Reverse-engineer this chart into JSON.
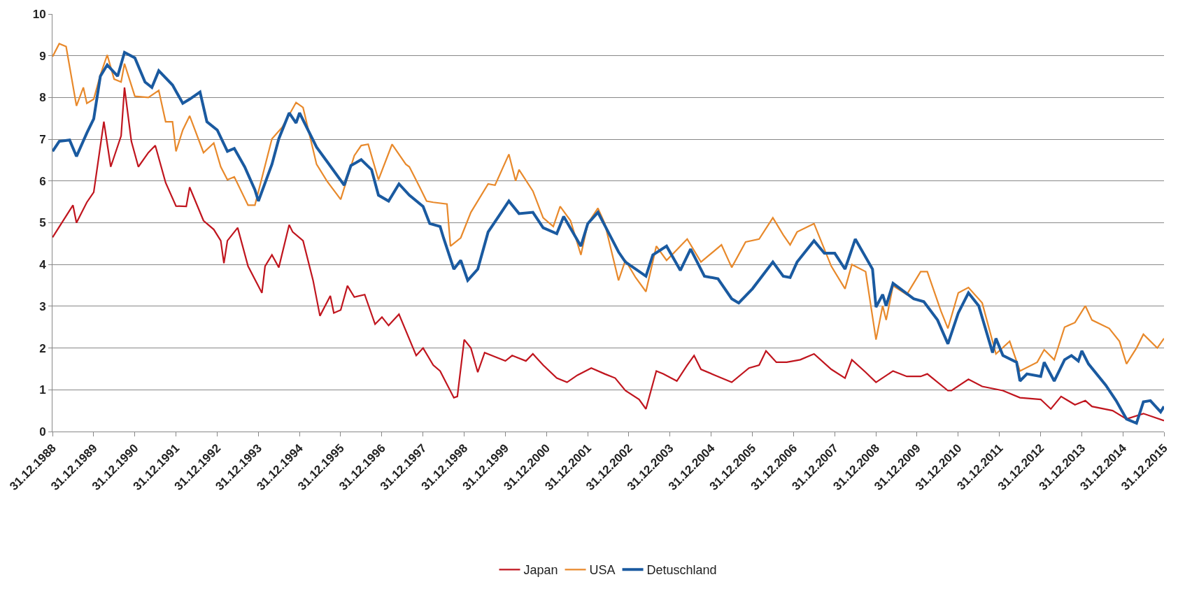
{
  "chart_data": {
    "type": "line",
    "xlim": [
      "1988-12-31",
      "2015-12-31"
    ],
    "xticks": [
      {
        "value": "1988-12-31",
        "label": "31.12.1988"
      },
      {
        "value": "1989-12-31",
        "label": "31.12.1989"
      },
      {
        "value": "1990-12-31",
        "label": "31.12.1990"
      },
      {
        "value": "1991-12-31",
        "label": "31.12.1991"
      },
      {
        "value": "1992-12-31",
        "label": "31.12.1992"
      },
      {
        "value": "1993-12-31",
        "label": "31.12.1993"
      },
      {
        "value": "1994-12-31",
        "label": "31.12.1994"
      },
      {
        "value": "1995-12-31",
        "label": "31.12.1995"
      },
      {
        "value": "1996-12-31",
        "label": "31.12.1996"
      },
      {
        "value": "1997-12-31",
        "label": "31.12.1997"
      },
      {
        "value": "1998-12-31",
        "label": "31.12.1998"
      },
      {
        "value": "1999-12-31",
        "label": "31.12.1999"
      },
      {
        "value": "2000-12-31",
        "label": "31.12.2000"
      },
      {
        "value": "2001-12-31",
        "label": "31.12.2001"
      },
      {
        "value": "2002-12-31",
        "label": "31.12.2002"
      },
      {
        "value": "2003-12-31",
        "label": "31.12.2003"
      },
      {
        "value": "2004-12-31",
        "label": "31.12.2004"
      },
      {
        "value": "2005-12-31",
        "label": "31.12.2005"
      },
      {
        "value": "2006-12-31",
        "label": "31.12.2006"
      },
      {
        "value": "2007-12-31",
        "label": "31.12.2007"
      },
      {
        "value": "2008-12-31",
        "label": "31.12.2008"
      },
      {
        "value": "2009-12-31",
        "label": "31.12.2009"
      },
      {
        "value": "2010-12-31",
        "label": "31.12.2010"
      },
      {
        "value": "2011-12-31",
        "label": "31.12.2011"
      },
      {
        "value": "2012-12-31",
        "label": "31.12.2012"
      },
      {
        "value": "2013-12-31",
        "label": "31.12.2013"
      },
      {
        "value": "2014-12-31",
        "label": "31.12.2014"
      },
      {
        "value": "2015-12-31",
        "label": "31.12.2015"
      }
    ],
    "ylim": [
      0,
      10
    ],
    "yticks": [
      0,
      1,
      2,
      3,
      4,
      5,
      6,
      7,
      8,
      9,
      10
    ],
    "grid": "y",
    "legend": "bottom",
    "marker": "none",
    "line_style": "solid",
    "series": [
      {
        "name": "Japan",
        "color": "#c0151e",
        "x": [
          "1989-01",
          "1989-07",
          "1989-08",
          "1989-11",
          "1990-01",
          "1990-04",
          "1990-06",
          "1990-09",
          "1990-10",
          "1990-12",
          "1991-02",
          "1991-05",
          "1991-07",
          "1991-10",
          "1992-01",
          "1992-04",
          "1992-05",
          "1992-09",
          "1992-12",
          "1993-02",
          "1993-03",
          "1993-04",
          "1993-07",
          "1993-10",
          "1994-02",
          "1994-03",
          "1994-05",
          "1994-07",
          "1994-10",
          "1994-11",
          "1995-02",
          "1995-05",
          "1995-07",
          "1995-10",
          "1995-11",
          "1996-01",
          "1996-03",
          "1996-05",
          "1996-08",
          "1996-11",
          "1997-01",
          "1997-03",
          "1997-06",
          "1997-11",
          "1998-01",
          "1998-04",
          "1998-06",
          "1998-10",
          "1998-11",
          "1999-01",
          "1999-03",
          "1999-05",
          "1999-07",
          "2000-01",
          "2000-03",
          "2000-07",
          "2000-09",
          "2000-12",
          "2001-04",
          "2001-07",
          "2001-10",
          "2002-02",
          "2002-06",
          "2002-09",
          "2002-12",
          "2003-04",
          "2003-06",
          "2003-09",
          "2003-11",
          "2004-03",
          "2004-06",
          "2004-08",
          "2004-10",
          "2005-02",
          "2005-07",
          "2005-12",
          "2006-03",
          "2006-05",
          "2006-08",
          "2006-11",
          "2007-03",
          "2007-07",
          "2007-12",
          "2008-04",
          "2008-06",
          "2008-10",
          "2009-01",
          "2009-06",
          "2009-10",
          "2010-02",
          "2010-04",
          "2010-10",
          "2010-11",
          "2011-04",
          "2011-08",
          "2012-02",
          "2012-07",
          "2013-01",
          "2013-04",
          "2013-07",
          "2013-11",
          "2014-02",
          "2014-04",
          "2014-10",
          "2015-02",
          "2015-07",
          "2015-12-31"
        ],
        "values": [
          4.65,
          5.42,
          5.0,
          5.49,
          5.73,
          7.42,
          6.34,
          7.08,
          8.24,
          6.95,
          6.34,
          6.68,
          6.85,
          5.96,
          5.4,
          5.39,
          5.85,
          5.05,
          4.84,
          4.57,
          4.03,
          4.57,
          4.88,
          3.96,
          3.32,
          3.96,
          4.23,
          3.93,
          4.95,
          4.78,
          4.57,
          3.62,
          2.77,
          3.25,
          2.84,
          2.91,
          3.49,
          3.22,
          3.28,
          2.57,
          2.74,
          2.54,
          2.81,
          1.82,
          2.0,
          1.59,
          1.45,
          0.81,
          0.84,
          2.2,
          2.0,
          1.42,
          1.89,
          1.69,
          1.82,
          1.69,
          1.86,
          1.59,
          1.28,
          1.18,
          1.35,
          1.52,
          1.38,
          1.28,
          0.98,
          0.77,
          0.54,
          1.45,
          1.38,
          1.21,
          1.59,
          1.82,
          1.49,
          1.35,
          1.18,
          1.52,
          1.59,
          1.93,
          1.66,
          1.66,
          1.72,
          1.86,
          1.49,
          1.28,
          1.72,
          1.42,
          1.18,
          1.45,
          1.32,
          1.32,
          1.38,
          0.98,
          0.98,
          1.25,
          1.08,
          0.98,
          0.81,
          0.77,
          0.54,
          0.84,
          0.64,
          0.74,
          0.6,
          0.5,
          0.3,
          0.43,
          0.26
        ]
      },
      {
        "name": "USA",
        "color": "#e8892b",
        "x": [
          "1989-01",
          "1989-03",
          "1989-05",
          "1989-08",
          "1989-10",
          "1989-11",
          "1990-01",
          "1990-03",
          "1990-05",
          "1990-07",
          "1990-09",
          "1990-10",
          "1991-01",
          "1991-05",
          "1991-08",
          "1991-10",
          "1991-12",
          "1992-01",
          "1992-03",
          "1992-05",
          "1992-09",
          "1992-12",
          "1993-02",
          "1993-04",
          "1993-06",
          "1993-10",
          "1993-12",
          "1994-02",
          "1994-05",
          "1994-08",
          "1994-12",
          "1995-02",
          "1995-06",
          "1995-09",
          "1996-01",
          "1996-05",
          "1996-07",
          "1996-09",
          "1996-12",
          "1997-04",
          "1997-08",
          "1997-09",
          "1997-12",
          "1998-02",
          "1998-04",
          "1998-08",
          "1998-09",
          "1998-12",
          "1999-03",
          "1999-08",
          "1999-10",
          "2000-02",
          "2000-04",
          "2000-05",
          "2000-09",
          "2000-12",
          "2001-03",
          "2001-05",
          "2001-08",
          "2001-11",
          "2002-01",
          "2002-04",
          "2002-06",
          "2002-10",
          "2002-12",
          "2003-03",
          "2003-06",
          "2003-09",
          "2003-12",
          "2004-06",
          "2004-10",
          "2005-04",
          "2005-07",
          "2005-11",
          "2006-03",
          "2006-07",
          "2006-10",
          "2006-12",
          "2007-02",
          "2007-07",
          "2007-12",
          "2008-04",
          "2008-06",
          "2008-10",
          "2009-01",
          "2009-03",
          "2009-04",
          "2009-06",
          "2009-10",
          "2010-02",
          "2010-04",
          "2010-08",
          "2010-10",
          "2011-01",
          "2011-04",
          "2011-08",
          "2011-12",
          "2012-04",
          "2012-07",
          "2012-12",
          "2013-02",
          "2013-05",
          "2013-08",
          "2013-11",
          "2014-02",
          "2014-04",
          "2014-09",
          "2014-12",
          "2015-02",
          "2015-05",
          "2015-07",
          "2015-11",
          "2015-12-31"
        ],
        "values": [
          8.98,
          9.29,
          9.22,
          7.8,
          8.24,
          7.86,
          7.96,
          8.54,
          9.02,
          8.44,
          8.37,
          8.81,
          8.03,
          8.0,
          8.17,
          7.42,
          7.42,
          6.71,
          7.22,
          7.56,
          6.68,
          6.91,
          6.34,
          6.03,
          6.1,
          5.42,
          5.42,
          null,
          7.01,
          7.29,
          7.88,
          7.76,
          6.4,
          6.0,
          5.56,
          6.61,
          6.85,
          6.88,
          6.03,
          6.88,
          6.4,
          6.34,
          5.86,
          5.52,
          5.49,
          5.45,
          4.44,
          4.64,
          5.25,
          5.93,
          5.9,
          6.64,
          6.0,
          6.27,
          5.76,
          5.12,
          4.91,
          5.39,
          5.05,
          4.23,
          4.98,
          5.35,
          4.98,
          3.62,
          4.1,
          3.69,
          3.35,
          4.44,
          4.1,
          4.61,
          4.06,
          4.47,
          3.93,
          4.54,
          4.61,
          5.12,
          4.71,
          4.47,
          4.78,
          4.98,
          3.96,
          3.42,
          4.0,
          3.83,
          2.2,
          3.01,
          2.67,
          3.49,
          3.28,
          3.83,
          3.83,
          2.88,
          2.47,
          3.32,
          3.45,
          3.08,
          1.86,
          2.16,
          1.45,
          1.66,
          1.96,
          1.72,
          2.5,
          2.61,
          3.01,
          2.67,
          2.47,
          2.16,
          1.62,
          2.0,
          2.33,
          2.0,
          2.23
        ]
      },
      {
        "name": "Detuschland",
        "color": "#1a5aa0",
        "x": [
          "1989-01",
          "1989-03",
          "1989-06",
          "1989-08",
          "1989-11",
          "1990-01",
          "1990-03",
          "1990-05",
          "1990-08",
          "1990-10",
          "1991-01",
          "1991-04",
          "1991-06",
          "1991-08",
          "1991-12",
          "1992-03",
          "1992-05",
          "1992-08",
          "1992-10",
          "1993-01",
          "1993-04",
          "1993-06",
          "1993-09",
          "1993-12",
          "1994-01",
          "1994-05",
          "1994-07",
          "1994-10",
          "1994-12",
          "1995-01",
          "1995-06",
          "1995-09",
          "1996-02",
          "1996-04",
          "1996-07",
          "1996-10",
          "1996-12",
          "1997-03",
          "1997-06",
          "1997-09",
          "1998-01",
          "1998-03",
          "1998-06",
          "1998-07",
          "1998-10",
          "1998-12",
          "1999-02",
          "1999-05",
          "1999-08",
          "1999-11",
          "2000-02",
          "2000-05",
          "2000-09",
          "2000-12",
          "2001-04",
          "2001-06",
          "2001-11",
          "2002-01",
          "2002-04",
          "2002-07",
          "2002-10",
          "2002-12",
          "2003-06",
          "2003-08",
          "2003-12",
          "2004-04",
          "2004-07",
          "2004-11",
          "2005-03",
          "2005-07",
          "2005-09",
          "2006-01",
          "2006-07",
          "2006-10",
          "2006-12",
          "2007-02",
          "2007-07",
          "2007-10",
          "2008-01",
          "2008-04",
          "2008-07",
          "2008-12",
          "2009-01",
          "2009-03",
          "2009-04",
          "2009-06",
          "2009-12",
          "2010-03",
          "2010-07",
          "2010-10",
          "2011-01",
          "2011-04",
          "2011-07",
          "2011-11",
          "2011-12",
          "2012-02",
          "2012-06",
          "2012-07",
          "2012-09",
          "2013-01",
          "2013-02",
          "2013-05",
          "2013-08",
          "2013-10",
          "2013-12",
          "2014-01",
          "2014-03",
          "2014-08",
          "2014-11",
          "2015-02",
          "2015-05",
          "2015-07",
          "2015-09",
          "2015-12",
          "2015-12-31"
        ],
        "values": [
          6.71,
          6.95,
          6.98,
          6.59,
          7.15,
          7.49,
          8.51,
          8.78,
          8.51,
          9.08,
          8.95,
          8.37,
          8.24,
          8.64,
          8.3,
          7.86,
          7.96,
          8.13,
          7.42,
          7.22,
          6.71,
          6.78,
          6.34,
          5.79,
          5.52,
          6.4,
          7.01,
          7.63,
          7.39,
          7.63,
          6.81,
          6.47,
          5.9,
          6.37,
          6.51,
          6.27,
          5.66,
          5.52,
          5.93,
          5.66,
          5.39,
          4.98,
          4.91,
          4.64,
          3.89,
          4.1,
          3.62,
          3.89,
          4.78,
          5.15,
          5.52,
          5.22,
          5.25,
          4.88,
          4.74,
          5.15,
          4.44,
          4.98,
          5.25,
          4.78,
          4.3,
          4.06,
          3.72,
          4.23,
          4.44,
          3.86,
          4.37,
          3.72,
          3.66,
          3.18,
          3.08,
          3.42,
          4.06,
          3.72,
          3.69,
          4.06,
          4.57,
          4.27,
          4.27,
          3.89,
          4.61,
          3.89,
          2.98,
          3.28,
          3.01,
          3.55,
          3.18,
          3.11,
          2.67,
          2.1,
          2.84,
          3.32,
          3.01,
          1.89,
          2.23,
          1.82,
          1.66,
          1.21,
          1.38,
          1.32,
          1.66,
          1.21,
          1.72,
          1.82,
          1.69,
          1.93,
          1.62,
          1.11,
          0.74,
          0.3,
          0.2,
          0.71,
          0.74,
          0.47,
          0.6
        ]
      }
    ]
  }
}
